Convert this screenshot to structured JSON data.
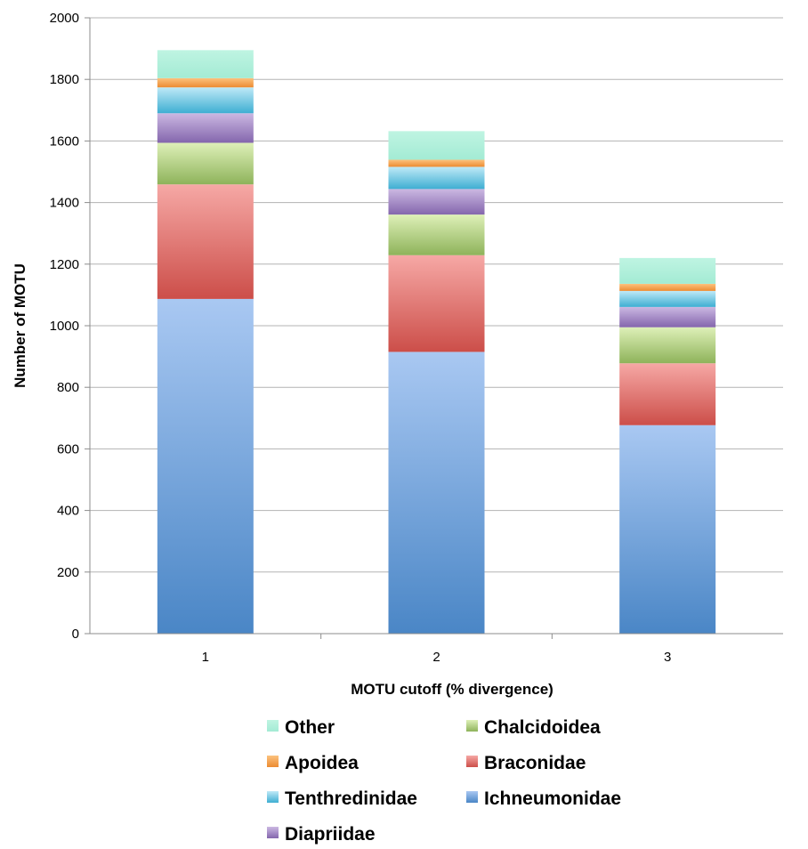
{
  "chart_data": {
    "type": "bar",
    "stacked": true,
    "xlabel": "MOTU cutoff (% divergence)",
    "ylabel": "Number of MOTU",
    "ylim": [
      0,
      2000
    ],
    "y_ticks": [
      0,
      200,
      400,
      600,
      800,
      1000,
      1200,
      1400,
      1600,
      1800,
      2000
    ],
    "categories": [
      "1",
      "2",
      "3"
    ],
    "grid": true,
    "legend_position": "bottom",
    "series": [
      {
        "name": "Ichneumonidae",
        "values": [
          1087,
          915,
          677
        ],
        "colors": [
          "#a9c8f2",
          "#4a86c6"
        ]
      },
      {
        "name": "Braconidae",
        "values": [
          372,
          314,
          201
        ],
        "colors": [
          "#f6a8a5",
          "#cc4e49"
        ]
      },
      {
        "name": "Chalcidoidea",
        "values": [
          135,
          132,
          117
        ],
        "colors": [
          "#def0b8",
          "#8eb35a"
        ]
      },
      {
        "name": "Diapriidae",
        "values": [
          96,
          83,
          66
        ],
        "colors": [
          "#cbb8e2",
          "#8466ad"
        ]
      },
      {
        "name": "Tenthredinidae",
        "values": [
          84,
          72,
          52
        ],
        "colors": [
          "#bfe9f7",
          "#3eaed2"
        ]
      },
      {
        "name": "Apoidea",
        "values": [
          30,
          23,
          23
        ],
        "colors": [
          "#fcc27e",
          "#ec8b32"
        ]
      },
      {
        "name": "Other",
        "values": [
          91,
          93,
          84
        ],
        "colors": [
          "#bff4e2",
          "#a3ebd4"
        ]
      }
    ],
    "legend_order": [
      "Other",
      "Chalcidoidea",
      "Apoidea",
      "Braconidae",
      "Tenthredinidae",
      "Ichneumonidae",
      "Diapriidae"
    ]
  }
}
